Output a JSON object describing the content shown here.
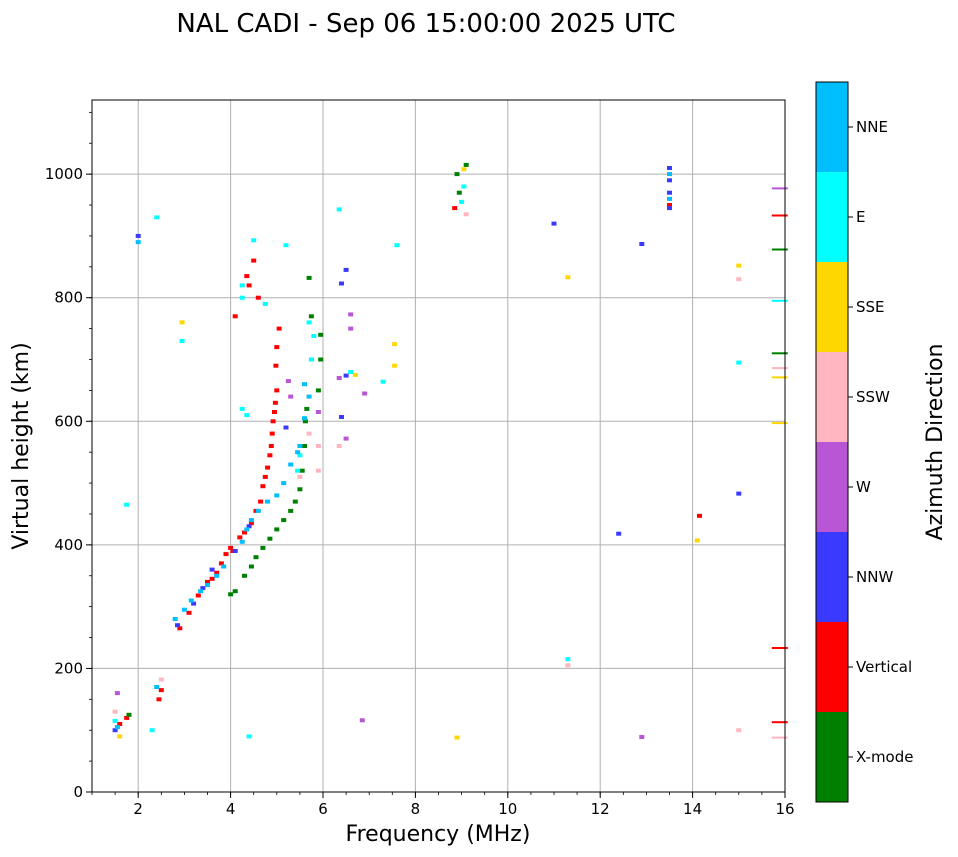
{
  "chart_data": {
    "type": "scatter",
    "title": "NAL CADI - Sep 06 15:00:00 2025 UTC",
    "xlabel": "Frequency (MHz)",
    "ylabel": "Virtual height (km)",
    "xlim": [
      1,
      16
    ],
    "ylim": [
      0,
      1120
    ],
    "xticks": [
      "2",
      "4",
      "6",
      "8",
      "10",
      "12",
      "14",
      "16"
    ],
    "yticks": [
      "0",
      "200",
      "400",
      "600",
      "800",
      "1000"
    ],
    "grid": true,
    "colorbar": {
      "label": "Azimuth Direction",
      "categories": [
        {
          "name": "X-mode",
          "color": "#008000"
        },
        {
          "name": "Vertical",
          "color": "#ff0000"
        },
        {
          "name": "NNW",
          "color": "#3a3aff"
        },
        {
          "name": "W",
          "color": "#b856d6"
        },
        {
          "name": "SSW",
          "color": "#ffb6c1"
        },
        {
          "name": "SSE",
          "color": "#ffd700"
        },
        {
          "name": "E",
          "color": "#00ffff"
        },
        {
          "name": "NNE",
          "color": "#00bfff"
        }
      ]
    },
    "series": [
      {
        "name": "Vertical",
        "points": [
          [
            2.9,
            265
          ],
          [
            3.1,
            290
          ],
          [
            3.3,
            318
          ],
          [
            3.5,
            340
          ],
          [
            3.7,
            355
          ],
          [
            3.8,
            370
          ],
          [
            3.9,
            385
          ],
          [
            4.0,
            395
          ],
          [
            4.2,
            412
          ],
          [
            4.3,
            420
          ],
          [
            4.45,
            435
          ],
          [
            4.55,
            455
          ],
          [
            4.65,
            470
          ],
          [
            4.7,
            495
          ],
          [
            4.75,
            510
          ],
          [
            4.8,
            525
          ],
          [
            4.85,
            545
          ],
          [
            4.88,
            560
          ],
          [
            4.9,
            580
          ],
          [
            4.92,
            600
          ],
          [
            4.95,
            615
          ],
          [
            4.97,
            630
          ],
          [
            5.0,
            650
          ],
          [
            4.98,
            690
          ],
          [
            5.0,
            720
          ],
          [
            5.05,
            750
          ],
          [
            4.1,
            770
          ],
          [
            4.35,
            835
          ],
          [
            4.4,
            820
          ],
          [
            4.5,
            860
          ],
          [
            4.6,
            800
          ],
          [
            1.6,
            110
          ],
          [
            1.75,
            120
          ],
          [
            2.45,
            150
          ],
          [
            2.5,
            165
          ],
          [
            14.15,
            447
          ],
          [
            15.8,
            233
          ],
          [
            15.8,
            113
          ],
          [
            15.8,
            933
          ],
          [
            8.85,
            945
          ],
          [
            13.5,
            950
          ],
          [
            4.05,
            390
          ],
          [
            3.6,
            345
          ]
        ]
      },
      {
        "name": "X-mode",
        "points": [
          [
            4.0,
            320
          ],
          [
            4.1,
            325
          ],
          [
            4.3,
            350
          ],
          [
            4.45,
            365
          ],
          [
            4.55,
            380
          ],
          [
            4.7,
            395
          ],
          [
            4.85,
            410
          ],
          [
            5.0,
            425
          ],
          [
            5.15,
            440
          ],
          [
            5.3,
            455
          ],
          [
            5.4,
            470
          ],
          [
            5.5,
            490
          ],
          [
            5.55,
            520
          ],
          [
            5.6,
            560
          ],
          [
            5.62,
            600
          ],
          [
            5.65,
            620
          ],
          [
            5.9,
            650
          ],
          [
            5.95,
            700
          ],
          [
            5.95,
            740
          ],
          [
            5.7,
            832
          ],
          [
            5.75,
            770
          ],
          [
            8.9,
            1000
          ],
          [
            8.95,
            970
          ],
          [
            9.1,
            1015
          ],
          [
            15.8,
            878
          ],
          [
            15.8,
            710
          ],
          [
            1.8,
            125
          ]
        ]
      },
      {
        "name": "NNW",
        "points": [
          [
            2.85,
            270
          ],
          [
            3.2,
            305
          ],
          [
            3.4,
            330
          ],
          [
            3.6,
            360
          ],
          [
            4.1,
            390
          ],
          [
            4.4,
            430
          ],
          [
            5.2,
            590
          ],
          [
            6.4,
            823
          ],
          [
            6.5,
            845
          ],
          [
            6.4,
            607
          ],
          [
            6.5,
            674
          ],
          [
            11.0,
            920
          ],
          [
            12.9,
            887
          ],
          [
            13.5,
            1010
          ],
          [
            13.5,
            990
          ],
          [
            13.5,
            970
          ],
          [
            13.5,
            945
          ],
          [
            2.0,
            900
          ],
          [
            12.4,
            418
          ],
          [
            15.0,
            483
          ],
          [
            1.5,
            100
          ]
        ]
      },
      {
        "name": "W",
        "points": [
          [
            6.35,
            670
          ],
          [
            6.5,
            572
          ],
          [
            6.6,
            750
          ],
          [
            6.6,
            773
          ],
          [
            6.9,
            645
          ],
          [
            6.85,
            116
          ],
          [
            5.9,
            615
          ],
          [
            5.3,
            640
          ],
          [
            5.25,
            665
          ],
          [
            1.55,
            160
          ],
          [
            12.9,
            89
          ],
          [
            15.8,
            977
          ]
        ]
      },
      {
        "name": "SSW",
        "points": [
          [
            5.9,
            520
          ],
          [
            5.9,
            560
          ],
          [
            5.7,
            580
          ],
          [
            6.35,
            560
          ],
          [
            5.5,
            510
          ],
          [
            1.5,
            130
          ],
          [
            2.5,
            182
          ],
          [
            9.1,
            935
          ],
          [
            11.3,
            205
          ],
          [
            15.0,
            100
          ],
          [
            15.8,
            88
          ],
          [
            15.0,
            830
          ],
          [
            15.8,
            686
          ]
        ]
      },
      {
        "name": "SSE",
        "points": [
          [
            1.6,
            90
          ],
          [
            2.95,
            760
          ],
          [
            7.55,
            690
          ],
          [
            7.55,
            725
          ],
          [
            8.9,
            88
          ],
          [
            9.05,
            1008
          ],
          [
            11.3,
            833
          ],
          [
            14.1,
            407
          ],
          [
            15.0,
            852
          ],
          [
            15.8,
            671
          ],
          [
            15.8,
            597
          ],
          [
            6.7,
            675
          ]
        ]
      },
      {
        "name": "E",
        "points": [
          [
            2.4,
            930
          ],
          [
            4.5,
            893
          ],
          [
            5.2,
            885
          ],
          [
            7.6,
            885
          ],
          [
            6.35,
            943
          ],
          [
            6.6,
            680
          ],
          [
            4.25,
            620
          ],
          [
            4.35,
            610
          ],
          [
            4.25,
            800
          ],
          [
            4.25,
            820
          ],
          [
            5.7,
            760
          ],
          [
            5.75,
            700
          ],
          [
            5.8,
            738
          ],
          [
            2.95,
            730
          ],
          [
            2.3,
            100
          ],
          [
            4.4,
            90
          ],
          [
            9.05,
            980
          ],
          [
            9.0,
            955
          ],
          [
            11.3,
            215
          ],
          [
            15.0,
            695
          ],
          [
            15.8,
            795
          ],
          [
            7.3,
            664
          ],
          [
            4.75,
            790
          ],
          [
            5.5,
            545
          ],
          [
            5.45,
            520
          ],
          [
            1.75,
            465
          ],
          [
            1.5,
            115
          ]
        ]
      },
      {
        "name": "NNE",
        "points": [
          [
            2.8,
            280
          ],
          [
            3.0,
            295
          ],
          [
            3.15,
            310
          ],
          [
            3.35,
            325
          ],
          [
            3.5,
            335
          ],
          [
            3.7,
            350
          ],
          [
            3.85,
            365
          ],
          [
            4.25,
            405
          ],
          [
            4.35,
            425
          ],
          [
            4.45,
            440
          ],
          [
            4.6,
            455
          ],
          [
            4.8,
            470
          ],
          [
            5.0,
            480
          ],
          [
            5.15,
            500
          ],
          [
            5.3,
            530
          ],
          [
            5.45,
            550
          ],
          [
            5.5,
            560
          ],
          [
            5.6,
            605
          ],
          [
            5.7,
            640
          ],
          [
            5.6,
            660
          ],
          [
            1.55,
            105
          ],
          [
            2.0,
            890
          ],
          [
            2.4,
            170
          ],
          [
            13.5,
            1000
          ],
          [
            13.5,
            960
          ]
        ]
      }
    ]
  }
}
